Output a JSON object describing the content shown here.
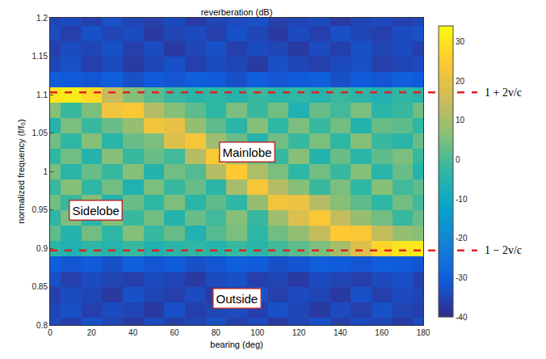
{
  "chart_data": {
    "type": "heatmap",
    "title": "reverberation (dB)",
    "xlabel": "bearing (deg)",
    "ylabel": "normalized frequency (f/f₀)",
    "x": [
      0,
      10,
      20,
      30,
      40,
      50,
      60,
      70,
      80,
      90,
      100,
      110,
      120,
      130,
      140,
      150,
      160,
      170,
      180
    ],
    "y": [
      0.8,
      0.82,
      0.84,
      0.86,
      0.88,
      0.9,
      0.92,
      0.94,
      0.96,
      0.98,
      1.0,
      1.02,
      1.04,
      1.06,
      1.08,
      1.1,
      1.12,
      1.14,
      1.16,
      1.18,
      1.2
    ],
    "z": [
      [
        -34,
        -36,
        -33,
        -35,
        -37,
        -34,
        -36,
        -35,
        -33,
        -36,
        -34,
        -37,
        -35,
        -33,
        -36,
        -34,
        -35,
        -37,
        -34
      ],
      [
        -35,
        -33,
        -36,
        -34,
        -35,
        -37,
        -33,
        -36,
        -35,
        -34,
        -36,
        -33,
        -35,
        -37,
        -34,
        -36,
        -33,
        -35,
        -36
      ],
      [
        -36,
        -34,
        -35,
        -37,
        -33,
        -35,
        -36,
        -34,
        -37,
        -35,
        -33,
        -36,
        -34,
        -35,
        -37,
        -33,
        -36,
        -34,
        -35
      ],
      [
        -33,
        -36,
        -34,
        -35,
        -36,
        -34,
        -35,
        -37,
        -34,
        -33,
        -36,
        -35,
        -37,
        -34,
        -35,
        -36,
        -34,
        -33,
        -36
      ],
      [
        -30,
        -32,
        -31,
        -33,
        -30,
        -32,
        -31,
        -33,
        -32,
        -30,
        -31,
        -33,
        -32,
        -30,
        -31,
        -32,
        -30,
        -31,
        -32
      ],
      [
        -4,
        -6,
        -3,
        -5,
        -2,
        -6,
        -4,
        -3,
        -5,
        -2,
        -4,
        -1,
        2,
        5,
        10,
        18,
        27,
        30,
        31
      ],
      [
        2,
        -5,
        4,
        -3,
        6,
        -2,
        3,
        -6,
        1,
        5,
        -3,
        4,
        8,
        14,
        25,
        24,
        14,
        8,
        6
      ],
      [
        -3,
        5,
        -4,
        6,
        -2,
        4,
        -5,
        3,
        -1,
        6,
        -2,
        9,
        18,
        24,
        14,
        8,
        4,
        -2,
        3
      ],
      [
        4,
        -2,
        6,
        -5,
        3,
        -3,
        5,
        -4,
        2,
        -3,
        8,
        22,
        21,
        12,
        6,
        2,
        -3,
        4,
        -1
      ],
      [
        -2,
        6,
        -3,
        4,
        -6,
        5,
        -2,
        3,
        -4,
        10,
        23,
        12,
        6,
        -2,
        5,
        -3,
        6,
        -1,
        2
      ],
      [
        5,
        -4,
        3,
        -2,
        6,
        -5,
        4,
        1,
        12,
        25,
        11,
        5,
        -3,
        4,
        -2,
        6,
        -4,
        3,
        -5
      ],
      [
        -3,
        4,
        -5,
        6,
        -2,
        3,
        -1,
        12,
        24,
        10,
        4,
        -2,
        6,
        -5,
        3,
        -4,
        2,
        5,
        -2
      ],
      [
        4,
        -3,
        6,
        -4,
        3,
        5,
        18,
        23,
        9,
        3,
        -5,
        4,
        -2,
        5,
        -3,
        6,
        -2,
        -4,
        3
      ],
      [
        -5,
        5,
        -2,
        3,
        8,
        22,
        20,
        8,
        2,
        -4,
        6,
        -3,
        5,
        -2,
        4,
        -5,
        3,
        2,
        -3
      ],
      [
        6,
        -2,
        5,
        22,
        24,
        12,
        6,
        2,
        -3,
        5,
        -2,
        4,
        -6,
        3,
        -1,
        5,
        -4,
        -2,
        4
      ],
      [
        30,
        31,
        28,
        14,
        6,
        2,
        -2,
        -4,
        -3,
        -5,
        -2,
        -4,
        -3,
        -5,
        -2,
        -4,
        -6,
        -3,
        -5
      ],
      [
        -30,
        -31,
        -32,
        -30,
        -33,
        -31,
        -32,
        -30,
        -31,
        -33,
        -30,
        -32,
        -31,
        -30,
        -33,
        -31,
        -32,
        -30,
        -31
      ],
      [
        -35,
        -33,
        -36,
        -34,
        -37,
        -35,
        -33,
        -36,
        -34,
        -35,
        -37,
        -33,
        -35,
        -36,
        -34,
        -33,
        -36,
        -35,
        -34
      ],
      [
        -36,
        -34,
        -35,
        -33,
        -36,
        -34,
        -37,
        -35,
        -33,
        -36,
        -34,
        -35,
        -37,
        -34,
        -36,
        -33,
        -35,
        -34,
        -36
      ],
      [
        -34,
        -36,
        -33,
        -35,
        -34,
        -37,
        -35,
        -34,
        -36,
        -33,
        -35,
        -37,
        -34,
        -36,
        -33,
        -35,
        -36,
        -34,
        -33
      ],
      [
        -35,
        -34,
        -36,
        -33,
        -35,
        -36,
        -34,
        -37,
        -35,
        -34,
        -33,
        -36,
        -35,
        -34,
        -37,
        -35,
        -34,
        -36,
        -35
      ]
    ],
    "xlim": [
      0,
      180
    ],
    "ylim": [
      0.8,
      1.2
    ],
    "xticks": [
      0,
      20,
      40,
      60,
      80,
      100,
      120,
      140,
      160,
      180
    ],
    "yticks": [
      0.8,
      0.85,
      0.9,
      0.95,
      1,
      1.05,
      1.1,
      1.15,
      1.2
    ],
    "colorbar_range": [
      -40,
      34
    ],
    "colorbar_ticks": [
      -40,
      -30,
      -20,
      -10,
      0,
      10,
      20,
      30
    ],
    "annotations": [
      {
        "text": "Mainlobe",
        "x": 95,
        "y": 1.025
      },
      {
        "text": "Sidelobe",
        "x": 22,
        "y": 0.95
      },
      {
        "text": "Outside",
        "x": 90,
        "y": 0.835
      }
    ],
    "reference_lines": [
      {
        "y": 1.103,
        "label": "1 + 2v/c"
      },
      {
        "y": 0.897,
        "label": "1 − 2v/c"
      }
    ]
  }
}
